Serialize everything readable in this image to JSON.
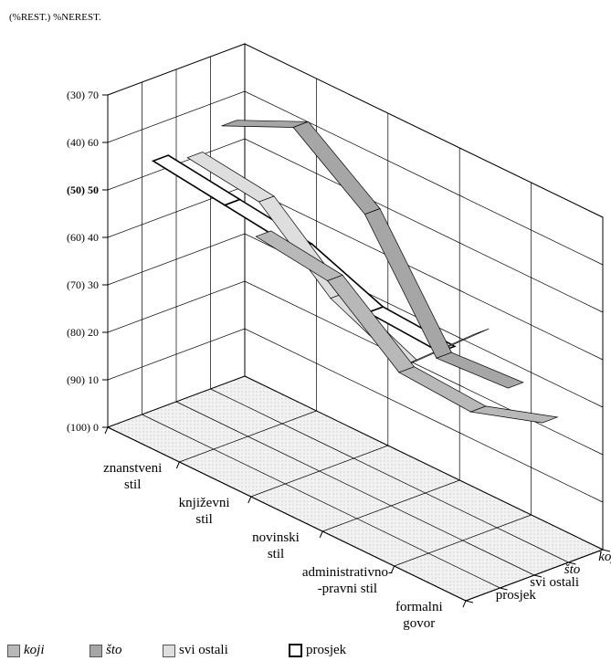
{
  "chart_data": {
    "type": "3d-ribbon",
    "axis_label": "(%REST.) %NEREST.",
    "z_ticks": [
      {
        "value": 70,
        "label": "(30) 70",
        "bold": false
      },
      {
        "value": 60,
        "label": "(40) 60",
        "bold": false
      },
      {
        "value": 50,
        "label": "(50) 50",
        "bold": true
      },
      {
        "value": 40,
        "label": "(60) 40",
        "bold": false
      },
      {
        "value": 30,
        "label": "(70) 30",
        "bold": false
      },
      {
        "value": 20,
        "label": "(80) 20",
        "bold": false
      },
      {
        "value": 10,
        "label": "(90) 10",
        "bold": false
      },
      {
        "value": 0,
        "label": "(100) 0",
        "bold": false
      }
    ],
    "zlim": [
      0,
      70
    ],
    "categories": [
      "znanstveni stil",
      "književni stil",
      "novinski stil",
      "administrativno--pravni stil",
      "formalni govor"
    ],
    "category_labels": [
      [
        "znanstveni",
        "stil"
      ],
      [
        "književni",
        "stil"
      ],
      [
        "novinski",
        "stil"
      ],
      [
        "administrativno-",
        "-pravni stil"
      ],
      [
        "formalni",
        "govor"
      ]
    ],
    "series_axis": [
      "koji",
      "što",
      "svi ostali",
      "prosjek"
    ],
    "series": [
      {
        "name": "koji",
        "values": [
          35,
          33,
          21,
          20,
          25
        ],
        "color": "#b8b8b8",
        "italic": true
      },
      {
        "name": "što",
        "values": [
          61,
          68,
          57,
          34,
          35
        ],
        "color": "#a6a6a6",
        "italic": true
      },
      {
        "name": "svi ostali",
        "values": [
          57,
          55,
          42,
          35,
          49
        ],
        "color": "#dedede",
        "italic": false
      },
      {
        "name": "prosjek",
        "values": [
          59,
          57,
          55,
          49,
          48
        ],
        "color": "#ffffff",
        "italic": false
      }
    ],
    "legend": [
      {
        "name": "koji",
        "italic": true
      },
      {
        "name": "što",
        "italic": true
      },
      {
        "name": "svi ostali",
        "italic": false
      },
      {
        "name": "prosjek",
        "italic": false
      }
    ],
    "legend_position": "bottom",
    "grid": true
  }
}
